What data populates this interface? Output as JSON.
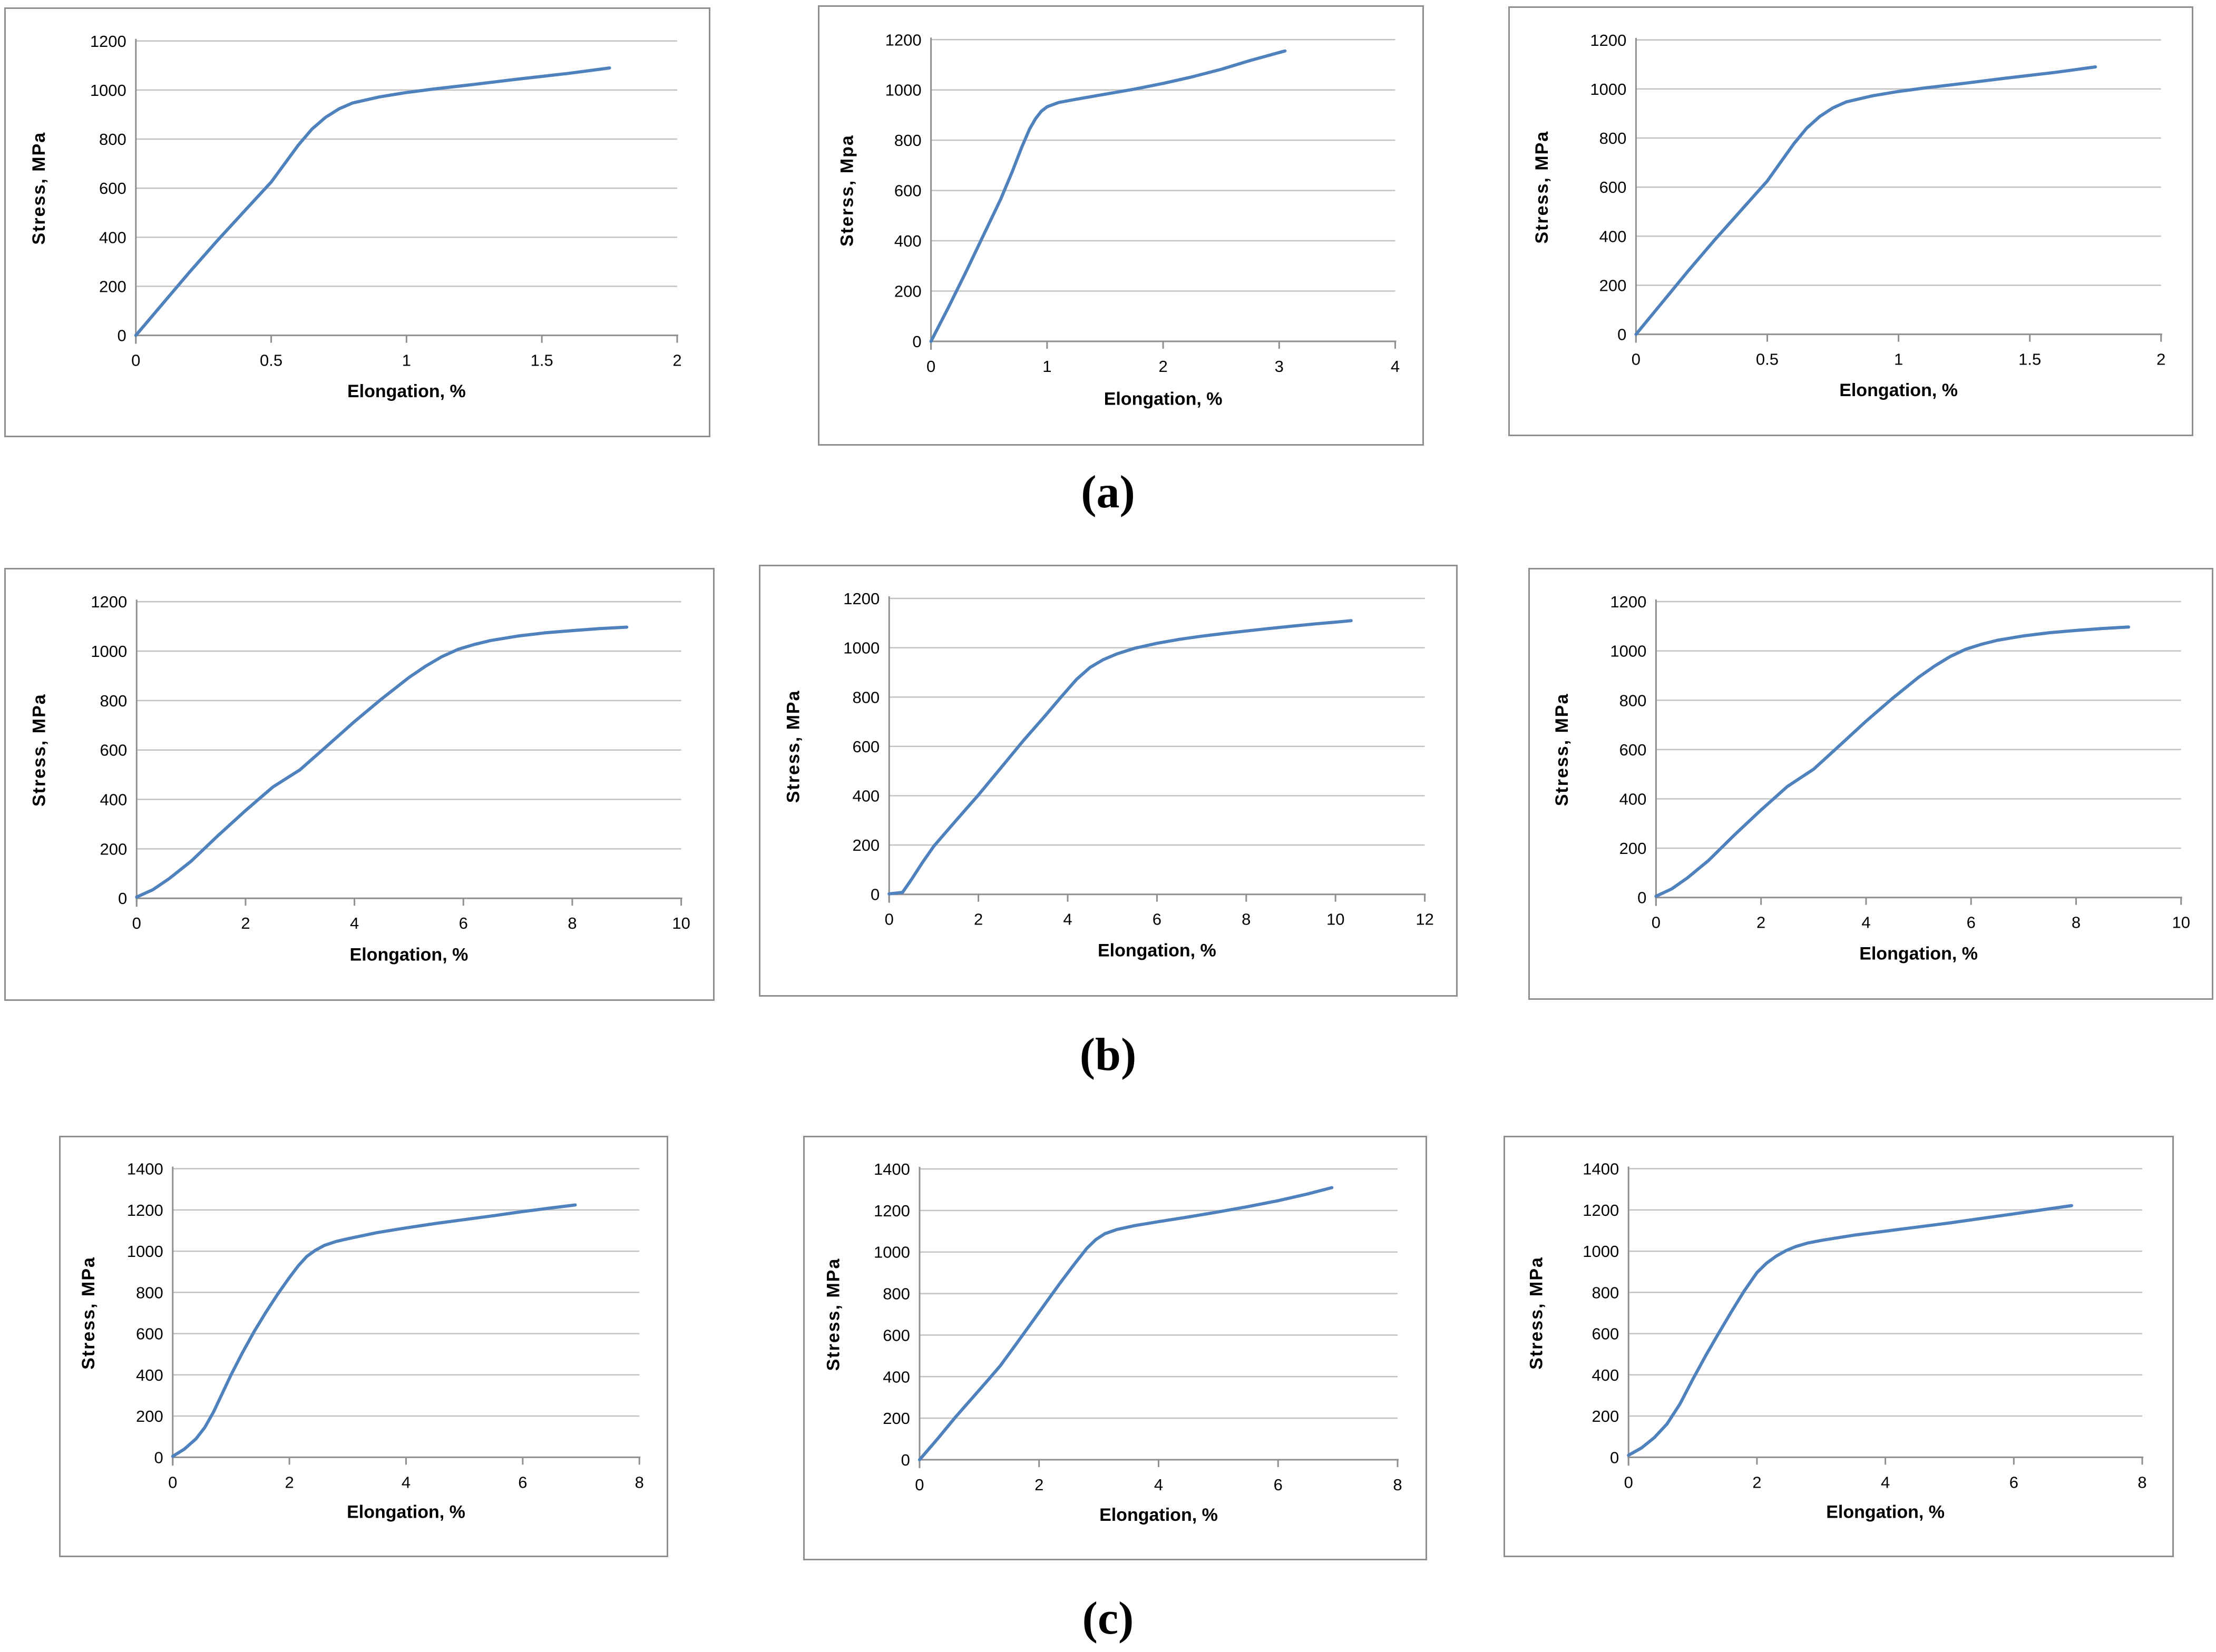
{
  "styles": {
    "curve_color": "#4f81bd",
    "grid_color": "#c2c2c2",
    "axis_color": "#8f8f8f",
    "text_color": "#000000",
    "panel_border_color": "#8f8f8f",
    "background": "#ffffff"
  },
  "row_labels": [
    {
      "id": "a",
      "label": "(a)"
    },
    {
      "id": "b",
      "label": "(b)"
    },
    {
      "id": "c",
      "label": "(c)"
    }
  ],
  "chart_data": [
    {
      "id": "a1",
      "type": "line",
      "row": "a",
      "xlabel": "Elongation, %",
      "ylabel": "Stress, MPa",
      "xlim": [
        0,
        2
      ],
      "ylim": [
        0,
        1200
      ],
      "xticks": [
        0,
        0.5,
        1,
        1.5,
        2
      ],
      "xtick_labels": [
        "0",
        "0.5",
        "1",
        "1.5",
        "2"
      ],
      "yticks": [
        0,
        200,
        400,
        600,
        800,
        1000,
        1200
      ],
      "grid": "horizontal",
      "legend": "none",
      "points": [
        [
          0,
          0
        ],
        [
          0.1,
          130
        ],
        [
          0.2,
          260
        ],
        [
          0.3,
          385
        ],
        [
          0.4,
          505
        ],
        [
          0.5,
          625
        ],
        [
          0.55,
          700
        ],
        [
          0.6,
          775
        ],
        [
          0.65,
          840
        ],
        [
          0.7,
          888
        ],
        [
          0.75,
          923
        ],
        [
          0.8,
          947
        ],
        [
          0.9,
          972
        ],
        [
          1.0,
          990
        ],
        [
          1.1,
          1004
        ],
        [
          1.25,
          1023
        ],
        [
          1.4,
          1043
        ],
        [
          1.6,
          1068
        ],
        [
          1.75,
          1090
        ]
      ]
    },
    {
      "id": "a2",
      "type": "line",
      "row": "a",
      "xlabel": "Elongation, %",
      "ylabel": "Sterss, Mpa",
      "xlim": [
        0,
        4
      ],
      "ylim": [
        0,
        1200
      ],
      "xticks": [
        0,
        1,
        2,
        3,
        4
      ],
      "xtick_labels": [
        "0",
        "1",
        "2",
        "3",
        "4"
      ],
      "yticks": [
        0,
        200,
        400,
        600,
        800,
        1000,
        1200
      ],
      "grid": "horizontal",
      "legend": "none",
      "points": [
        [
          0,
          0
        ],
        [
          0.15,
          135
        ],
        [
          0.3,
          275
        ],
        [
          0.45,
          420
        ],
        [
          0.6,
          565
        ],
        [
          0.7,
          675
        ],
        [
          0.78,
          770
        ],
        [
          0.85,
          845
        ],
        [
          0.9,
          885
        ],
        [
          0.95,
          915
        ],
        [
          1.0,
          933
        ],
        [
          1.1,
          950
        ],
        [
          1.25,
          963
        ],
        [
          1.5,
          983
        ],
        [
          1.75,
          1003
        ],
        [
          2.0,
          1026
        ],
        [
          2.25,
          1052
        ],
        [
          2.5,
          1082
        ],
        [
          2.75,
          1117
        ],
        [
          3.05,
          1155
        ]
      ]
    },
    {
      "id": "a3",
      "type": "line",
      "row": "a",
      "xlabel": "Elongation, %",
      "ylabel": "Stress, MPa",
      "xlim": [
        0,
        2
      ],
      "ylim": [
        0,
        1200
      ],
      "xticks": [
        0,
        0.5,
        1,
        1.5,
        2
      ],
      "xtick_labels": [
        "0",
        "0.5",
        "1",
        "1.5",
        "2"
      ],
      "yticks": [
        0,
        200,
        400,
        600,
        800,
        1000,
        1200
      ],
      "grid": "horizontal",
      "legend": "none",
      "points": [
        [
          0,
          0
        ],
        [
          0.1,
          130
        ],
        [
          0.2,
          260
        ],
        [
          0.3,
          385
        ],
        [
          0.4,
          505
        ],
        [
          0.5,
          625
        ],
        [
          0.55,
          700
        ],
        [
          0.6,
          775
        ],
        [
          0.65,
          840
        ],
        [
          0.7,
          888
        ],
        [
          0.75,
          923
        ],
        [
          0.8,
          947
        ],
        [
          0.9,
          972
        ],
        [
          1.0,
          990
        ],
        [
          1.1,
          1004
        ],
        [
          1.25,
          1023
        ],
        [
          1.4,
          1043
        ],
        [
          1.6,
          1068
        ],
        [
          1.75,
          1090
        ]
      ]
    },
    {
      "id": "b1",
      "type": "line",
      "row": "b",
      "xlabel": "Elongation, %",
      "ylabel": "Stress, MPa",
      "xlim": [
        0,
        10
      ],
      "ylim": [
        0,
        1200
      ],
      "xticks": [
        0,
        2,
        4,
        6,
        8,
        10
      ],
      "xtick_labels": [
        "0",
        "2",
        "4",
        "6",
        "8",
        "10"
      ],
      "yticks": [
        0,
        200,
        400,
        600,
        800,
        1000,
        1200
      ],
      "grid": "horizontal",
      "legend": "none",
      "points": [
        [
          0,
          5
        ],
        [
          0.3,
          35
        ],
        [
          0.6,
          80
        ],
        [
          1.0,
          150
        ],
        [
          1.5,
          255
        ],
        [
          2.0,
          355
        ],
        [
          2.5,
          450
        ],
        [
          2.8,
          492
        ],
        [
          3.0,
          520
        ],
        [
          3.5,
          617
        ],
        [
          4.0,
          715
        ],
        [
          4.5,
          807
        ],
        [
          5.0,
          893
        ],
        [
          5.3,
          938
        ],
        [
          5.6,
          977
        ],
        [
          5.9,
          1007
        ],
        [
          6.2,
          1027
        ],
        [
          6.5,
          1043
        ],
        [
          7.0,
          1061
        ],
        [
          7.5,
          1074
        ],
        [
          8.0,
          1083
        ],
        [
          8.5,
          1091
        ],
        [
          9.0,
          1097
        ]
      ]
    },
    {
      "id": "b2",
      "type": "line",
      "row": "b",
      "xlabel": "Elongation, %",
      "ylabel": "Stress, MPa",
      "xlim": [
        0,
        12
      ],
      "ylim": [
        0,
        1200
      ],
      "xticks": [
        0,
        2,
        4,
        6,
        8,
        10,
        12
      ],
      "xtick_labels": [
        "0",
        "2",
        "4",
        "6",
        "8",
        "10",
        "12"
      ],
      "yticks": [
        0,
        200,
        400,
        600,
        800,
        1000,
        1200
      ],
      "grid": "horizontal",
      "legend": "none",
      "points": [
        [
          0,
          2
        ],
        [
          0.3,
          8
        ],
        [
          0.5,
          60
        ],
        [
          0.75,
          130
        ],
        [
          1.0,
          195
        ],
        [
          1.5,
          300
        ],
        [
          2.0,
          403
        ],
        [
          2.5,
          512
        ],
        [
          3.0,
          622
        ],
        [
          3.5,
          725
        ],
        [
          3.85,
          800
        ],
        [
          4.2,
          872
        ],
        [
          4.5,
          920
        ],
        [
          4.8,
          952
        ],
        [
          5.1,
          975
        ],
        [
          5.5,
          998
        ],
        [
          6.0,
          1018
        ],
        [
          6.5,
          1034
        ],
        [
          7.0,
          1047
        ],
        [
          7.5,
          1058
        ],
        [
          8.0,
          1068
        ],
        [
          8.5,
          1078
        ],
        [
          9.0,
          1087
        ],
        [
          9.5,
          1096
        ],
        [
          10.0,
          1104
        ],
        [
          10.35,
          1110
        ]
      ]
    },
    {
      "id": "b3",
      "type": "line",
      "row": "b",
      "xlabel": "Elongation, %",
      "ylabel": "Stress, MPa",
      "xlim": [
        0,
        10
      ],
      "ylim": [
        0,
        1200
      ],
      "xticks": [
        0,
        2,
        4,
        6,
        8,
        10
      ],
      "xtick_labels": [
        "0",
        "2",
        "4",
        "6",
        "8",
        "10"
      ],
      "yticks": [
        0,
        200,
        400,
        600,
        800,
        1000,
        1200
      ],
      "grid": "horizontal",
      "legend": "none",
      "points": [
        [
          0,
          5
        ],
        [
          0.3,
          35
        ],
        [
          0.6,
          80
        ],
        [
          1.0,
          150
        ],
        [
          1.5,
          255
        ],
        [
          2.0,
          355
        ],
        [
          2.5,
          450
        ],
        [
          2.8,
          492
        ],
        [
          3.0,
          520
        ],
        [
          3.5,
          617
        ],
        [
          4.0,
          715
        ],
        [
          4.5,
          807
        ],
        [
          5.0,
          893
        ],
        [
          5.3,
          938
        ],
        [
          5.6,
          977
        ],
        [
          5.9,
          1007
        ],
        [
          6.2,
          1027
        ],
        [
          6.5,
          1043
        ],
        [
          7.0,
          1061
        ],
        [
          7.5,
          1074
        ],
        [
          8.0,
          1083
        ],
        [
          8.5,
          1091
        ],
        [
          9.0,
          1097
        ]
      ]
    },
    {
      "id": "c1",
      "type": "line",
      "row": "c",
      "xlabel": "Elongation, %",
      "ylabel": "Stress, MPa",
      "xlim": [
        0,
        8
      ],
      "ylim": [
        0,
        1400
      ],
      "xticks": [
        0,
        2,
        4,
        6,
        8
      ],
      "xtick_labels": [
        "0",
        "2",
        "4",
        "6",
        "8"
      ],
      "yticks": [
        0,
        200,
        400,
        600,
        800,
        1000,
        1200,
        1400
      ],
      "grid": "horizontal",
      "legend": "none",
      "points": [
        [
          0,
          5
        ],
        [
          0.2,
          40
        ],
        [
          0.4,
          90
        ],
        [
          0.55,
          145
        ],
        [
          0.7,
          220
        ],
        [
          0.85,
          310
        ],
        [
          1.0,
          400
        ],
        [
          1.2,
          510
        ],
        [
          1.4,
          612
        ],
        [
          1.6,
          705
        ],
        [
          1.8,
          792
        ],
        [
          2.0,
          872
        ],
        [
          2.15,
          928
        ],
        [
          2.3,
          975
        ],
        [
          2.45,
          1005
        ],
        [
          2.6,
          1028
        ],
        [
          2.8,
          1047
        ],
        [
          3.0,
          1060
        ],
        [
          3.5,
          1090
        ],
        [
          4.0,
          1113
        ],
        [
          4.5,
          1134
        ],
        [
          5.0,
          1153
        ],
        [
          5.5,
          1172
        ],
        [
          6.0,
          1192
        ],
        [
          6.5,
          1210
        ],
        [
          6.9,
          1224
        ]
      ]
    },
    {
      "id": "c2",
      "type": "line",
      "row": "c",
      "xlabel": "Elongation, %",
      "ylabel": "Stress, MPa",
      "xlim": [
        0,
        8
      ],
      "ylim": [
        0,
        1400
      ],
      "xticks": [
        0,
        2,
        4,
        6,
        8
      ],
      "xtick_labels": [
        "0",
        "2",
        "4",
        "6",
        "8"
      ],
      "yticks": [
        0,
        200,
        400,
        600,
        800,
        1000,
        1200,
        1400
      ],
      "grid": "horizontal",
      "legend": "none",
      "points": [
        [
          0,
          0
        ],
        [
          0.3,
          100
        ],
        [
          0.6,
          205
        ],
        [
          0.9,
          303
        ],
        [
          1.15,
          385
        ],
        [
          1.35,
          452
        ],
        [
          1.6,
          550
        ],
        [
          1.85,
          650
        ],
        [
          2.1,
          750
        ],
        [
          2.35,
          850
        ],
        [
          2.6,
          945
        ],
        [
          2.8,
          1018
        ],
        [
          2.95,
          1060
        ],
        [
          3.1,
          1088
        ],
        [
          3.3,
          1108
        ],
        [
          3.6,
          1127
        ],
        [
          4.0,
          1146
        ],
        [
          4.5,
          1169
        ],
        [
          5.0,
          1193
        ],
        [
          5.5,
          1219
        ],
        [
          6.0,
          1247
        ],
        [
          6.5,
          1280
        ],
        [
          6.9,
          1310
        ]
      ]
    },
    {
      "id": "c3",
      "type": "line",
      "row": "c",
      "xlabel": "Elongation, %",
      "ylabel": "Stress, MPa",
      "xlim": [
        0,
        8
      ],
      "ylim": [
        0,
        1400
      ],
      "xticks": [
        0,
        2,
        4,
        6,
        8
      ],
      "xtick_labels": [
        "0",
        "2",
        "4",
        "6",
        "8"
      ],
      "yticks": [
        0,
        200,
        400,
        600,
        800,
        1000,
        1200,
        1400
      ],
      "grid": "horizontal",
      "legend": "none",
      "points": [
        [
          0,
          10
        ],
        [
          0.2,
          45
        ],
        [
          0.4,
          95
        ],
        [
          0.6,
          162
        ],
        [
          0.8,
          258
        ],
        [
          1.0,
          378
        ],
        [
          1.2,
          492
        ],
        [
          1.4,
          600
        ],
        [
          1.6,
          705
        ],
        [
          1.8,
          806
        ],
        [
          2.0,
          896
        ],
        [
          2.15,
          942
        ],
        [
          2.3,
          976
        ],
        [
          2.45,
          1002
        ],
        [
          2.6,
          1022
        ],
        [
          2.8,
          1040
        ],
        [
          3.0,
          1052
        ],
        [
          3.5,
          1077
        ],
        [
          4.0,
          1097
        ],
        [
          4.5,
          1117
        ],
        [
          5.0,
          1137
        ],
        [
          5.5,
          1159
        ],
        [
          6.0,
          1181
        ],
        [
          6.5,
          1203
        ],
        [
          6.9,
          1221
        ]
      ]
    }
  ]
}
